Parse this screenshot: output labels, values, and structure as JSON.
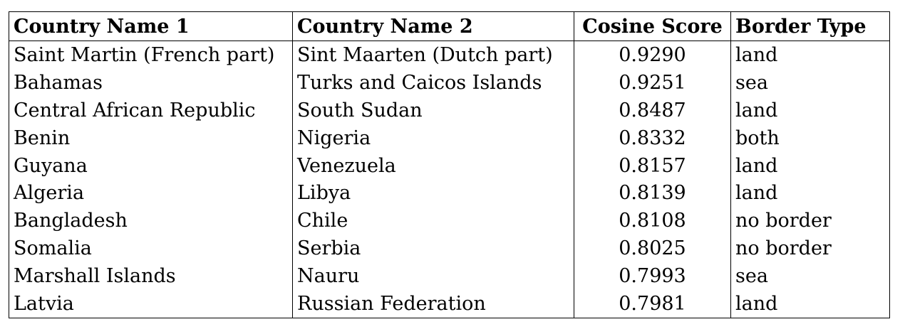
{
  "table": {
    "headers": [
      "Country Name 1",
      "Country Name 2",
      "Cosine Score",
      "Border Type"
    ],
    "rows": [
      [
        "Saint Martin (French part)",
        "Sint Maarten (Dutch part)",
        "0.9290",
        "land"
      ],
      [
        "Bahamas",
        "Turks and Caicos Islands",
        "0.9251",
        "sea"
      ],
      [
        "Central African Republic",
        "South Sudan",
        "0.8487",
        "land"
      ],
      [
        "Benin",
        "Nigeria",
        "0.8332",
        "both"
      ],
      [
        "Guyana",
        "Venezuela",
        "0.8157",
        "land"
      ],
      [
        "Algeria",
        "Libya",
        "0.8139",
        "land"
      ],
      [
        "Bangladesh",
        "Chile",
        "0.8108",
        "no border"
      ],
      [
        "Somalia",
        "Serbia",
        "0.8025",
        "no border"
      ],
      [
        "Marshall Islands",
        "Nauru",
        "0.7993",
        "sea"
      ],
      [
        "Latvia",
        "Russian Federation",
        "0.7981",
        "land"
      ]
    ]
  }
}
